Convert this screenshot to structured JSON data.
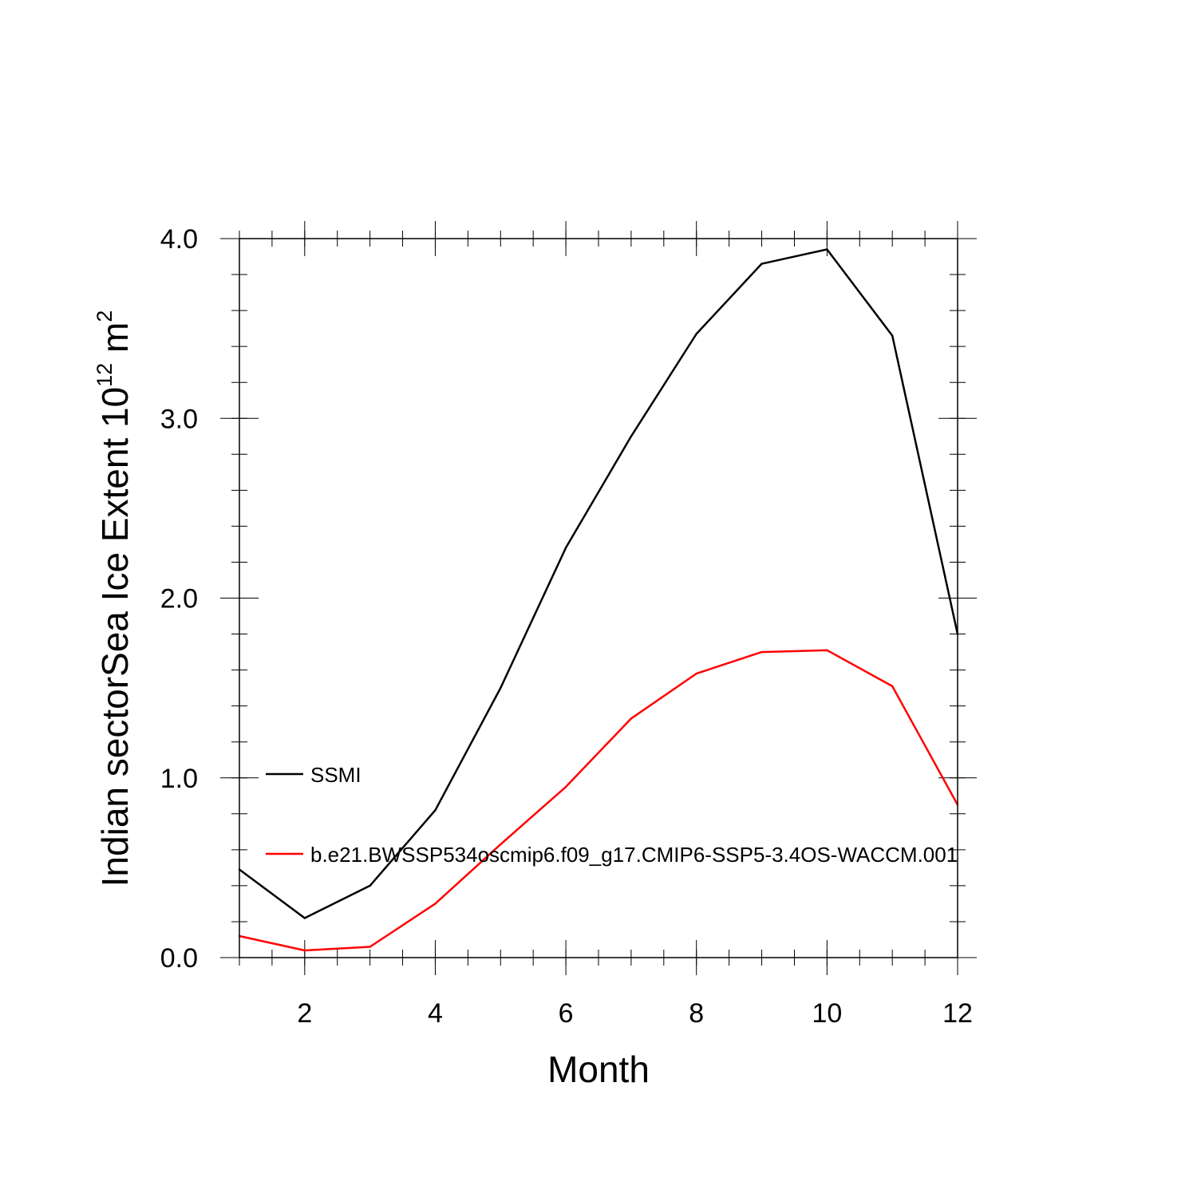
{
  "chart_data": {
    "type": "line",
    "title": "",
    "xlabel": "Month",
    "ylabel_main": "Indian sectorSea Ice Extent 10",
    "ylabel_exp": "12",
    "ylabel_unit": " m",
    "ylabel_unit_exp": "2",
    "xlim": [
      1,
      12
    ],
    "ylim": [
      0,
      4
    ],
    "x_ticks": [
      2,
      4,
      6,
      8,
      10,
      12
    ],
    "x_tick_labels": [
      "2",
      "4",
      "6",
      "8",
      "10",
      "12"
    ],
    "y_ticks": [
      0,
      1,
      2,
      3,
      4
    ],
    "y_tick_labels": [
      "0.0",
      "1.0",
      "2.0",
      "3.0",
      "4.0"
    ],
    "grid": false,
    "legend_position": "inside-left",
    "x": [
      1,
      2,
      3,
      4,
      5,
      6,
      7,
      8,
      9,
      10,
      11,
      12
    ],
    "series": [
      {
        "name": "SSMI",
        "color": "#000000",
        "values": [
          0.49,
          0.22,
          0.4,
          0.82,
          1.5,
          2.28,
          2.9,
          3.47,
          3.86,
          3.94,
          3.46,
          1.8
        ]
      },
      {
        "name": "b.e21.BWSSP534oscmip6.f09_g17.CMIP6-SSP5-3.4OS-WACCM.001",
        "color": "#ff0000",
        "values": [
          0.12,
          0.04,
          0.06,
          0.3,
          0.63,
          0.95,
          1.33,
          1.58,
          1.7,
          1.71,
          1.51,
          0.85
        ]
      }
    ]
  }
}
